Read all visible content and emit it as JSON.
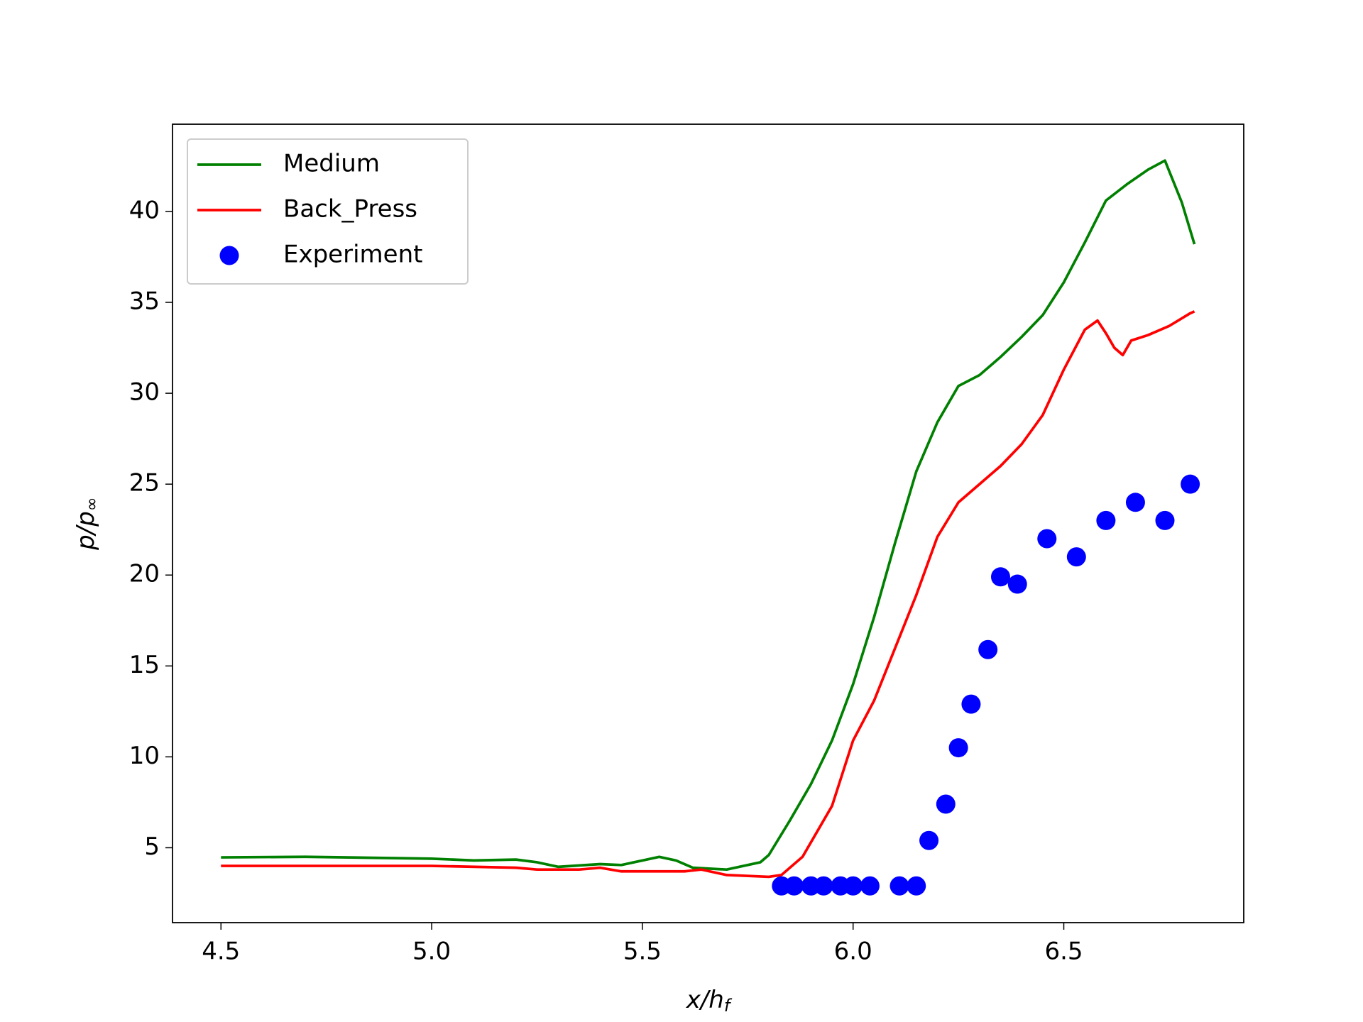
{
  "chart_data": {
    "type": "line",
    "xlabel": "x/h",
    "xlabel_sub": "f",
    "ylabel": "p/p",
    "ylabel_sub": "∞",
    "xlim": [
      4.385,
      6.927
    ],
    "ylim": [
      0.88,
      44.8
    ],
    "xticks": [
      4.5,
      {
        "value": 5,
        "label": "5.0"
      },
      5.5,
      {
        "value": 6,
        "label": "6.0"
      },
      6.5
    ],
    "yticks": [
      5,
      10,
      15,
      20,
      25,
      30,
      35,
      40
    ],
    "legend": "upper left",
    "series": [
      {
        "name": "Medium",
        "color": "#008000",
        "type": "line",
        "x": [
          4.5,
          4.7,
          5.0,
          5.1,
          5.2,
          5.25,
          5.3,
          5.4,
          5.45,
          5.5,
          5.54,
          5.58,
          5.62,
          5.7,
          5.78,
          5.8,
          5.85,
          5.9,
          5.95,
          6.0,
          6.05,
          6.1,
          6.15,
          6.2,
          6.25,
          6.3,
          6.35,
          6.4,
          6.45,
          6.5,
          6.55,
          6.6,
          6.65,
          6.7,
          6.74,
          6.78,
          6.81
        ],
        "values": [
          4.47,
          4.5,
          4.4,
          4.3,
          4.35,
          4.2,
          3.95,
          4.1,
          4.05,
          4.3,
          4.5,
          4.3,
          3.9,
          3.8,
          4.2,
          4.6,
          6.5,
          8.5,
          10.9,
          14,
          17.7,
          21.8,
          25.7,
          28.4,
          30.4,
          31.0,
          32.0,
          33.1,
          34.3,
          36.1,
          38.3,
          40.6,
          41.5,
          42.3,
          42.8,
          40.5,
          38.2
        ]
      },
      {
        "name": "Back_Press",
        "color": "#ff0000",
        "type": "line",
        "x": [
          4.5,
          5.0,
          5.2,
          5.25,
          5.35,
          5.4,
          5.45,
          5.6,
          5.64,
          5.7,
          5.8,
          5.83,
          5.88,
          5.95,
          6.0,
          6.05,
          6.1,
          6.15,
          6.2,
          6.25,
          6.3,
          6.35,
          6.4,
          6.45,
          6.5,
          6.55,
          6.58,
          6.6,
          6.62,
          6.64,
          6.66,
          6.7,
          6.75,
          6.8,
          6.81
        ],
        "values": [
          4.0,
          4.0,
          3.9,
          3.8,
          3.8,
          3.9,
          3.7,
          3.7,
          3.8,
          3.5,
          3.4,
          3.5,
          4.5,
          7.3,
          10.9,
          13.1,
          16.0,
          18.9,
          22.1,
          24.0,
          25.0,
          26.0,
          27.2,
          28.8,
          31.3,
          33.5,
          34.0,
          33.3,
          32.5,
          32.1,
          32.9,
          33.2,
          33.7,
          34.4,
          34.5
        ]
      },
      {
        "name": "Experiment",
        "color": "#0000ff",
        "type": "scatter",
        "x": [
          5.83,
          5.86,
          5.9,
          5.93,
          5.97,
          6.0,
          6.04,
          6.11,
          6.15,
          6.18,
          6.22,
          6.25,
          6.28,
          6.32,
          6.35,
          6.39,
          6.46,
          6.53,
          6.6,
          6.67,
          6.74,
          6.8
        ],
        "values": [
          2.9,
          2.9,
          2.9,
          2.9,
          2.9,
          2.9,
          2.9,
          2.9,
          2.9,
          5.4,
          7.4,
          10.5,
          12.9,
          15.9,
          19.9,
          19.5,
          22.0,
          21.0,
          23.0,
          24.0,
          23.0,
          25.0
        ]
      }
    ]
  }
}
